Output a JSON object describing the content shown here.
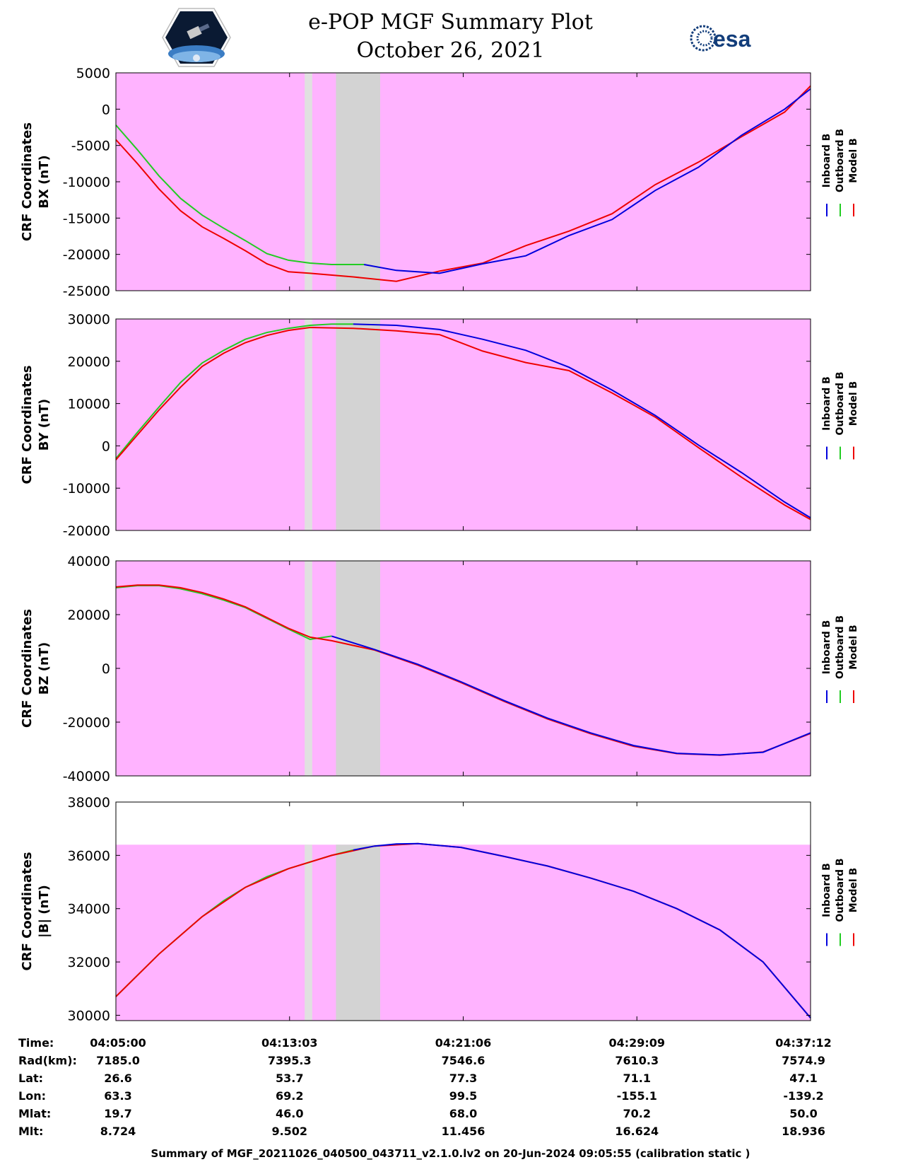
{
  "header": {
    "title_line1": "e-POP MGF Summary Plot",
    "title_line2": "October 26, 2021",
    "logo_left": "cassiope-mission-logo",
    "logo_right_text": "esa"
  },
  "colors": {
    "inboard": "#0000dd",
    "outboard": "#22cc22",
    "model": "#ee0000",
    "background_band": "#ffb3ff",
    "gap_band": "#d3d3d3",
    "light_gap": "#e0e0e0"
  },
  "legend": [
    "Inboard B",
    "Outboard B",
    "Model B"
  ],
  "chart_data": [
    {
      "type": "line",
      "ylabel_line1": "CRF Coordinates",
      "ylabel_line2": "BX (nT)",
      "ylim": [
        -25000,
        5000
      ],
      "yticks": [
        5000,
        0,
        -5000,
        -10000,
        -15000,
        -20000,
        -25000
      ],
      "x_minutes_label_note": "",
      "series": [
        {
          "name": "Inboard B",
          "x": [
            11.5,
            13,
            15,
            17,
            19,
            21,
            23,
            25,
            27,
            29,
            31,
            32.2
          ],
          "y": [
            -21400,
            -22200,
            -22600,
            -21300,
            -20200,
            -17400,
            -15200,
            -11200,
            -8000,
            -3600,
            0,
            2800
          ]
        },
        {
          "name": "Outboard B",
          "x": [
            0,
            1,
            2,
            3,
            4,
            5,
            6,
            7,
            8,
            9,
            10,
            11,
            11.5
          ],
          "y": [
            -2200,
            -5600,
            -9200,
            -12300,
            -14600,
            -16400,
            -18100,
            -19900,
            -20800,
            -21200,
            -21400,
            -21400,
            -21400
          ]
        },
        {
          "name": "Model B",
          "x": [
            0,
            1,
            2,
            3,
            4,
            5,
            6,
            7,
            8,
            9,
            11,
            13,
            15,
            17,
            19,
            21,
            23,
            25,
            27,
            29,
            31,
            32.2
          ],
          "y": [
            -4200,
            -7500,
            -11000,
            -14000,
            -16200,
            -17800,
            -19500,
            -21300,
            -22400,
            -22600,
            -23100,
            -23700,
            -22300,
            -21200,
            -18800,
            -16800,
            -14400,
            -10400,
            -7300,
            -3800,
            -400,
            3200
          ]
        }
      ]
    },
    {
      "type": "line",
      "ylabel_line1": "CRF Coordinates",
      "ylabel_line2": "BY (nT)",
      "ylim": [
        -20000,
        30000
      ],
      "yticks": [
        30000,
        20000,
        10000,
        0,
        -10000,
        -20000
      ],
      "series": [
        {
          "name": "Inboard B",
          "x": [
            11,
            13,
            15,
            17,
            19,
            21,
            23,
            25,
            27,
            29,
            31,
            32.2
          ],
          "y": [
            28800,
            28500,
            27500,
            25200,
            22600,
            18600,
            13200,
            7200,
            200,
            -6300,
            -13300,
            -17000
          ]
        },
        {
          "name": "Outboard B",
          "x": [
            0,
            1,
            2,
            3,
            4,
            5,
            6,
            7,
            8,
            9,
            10,
            11
          ],
          "y": [
            -3000,
            3200,
            9200,
            15000,
            19600,
            22600,
            25200,
            26800,
            27800,
            28500,
            28800,
            28800
          ]
        },
        {
          "name": "Model B",
          "x": [
            0,
            1,
            2,
            3,
            4,
            5,
            6,
            7,
            8,
            9,
            11,
            13,
            15,
            17,
            19,
            21,
            23,
            25,
            27,
            29,
            31,
            32.2
          ],
          "y": [
            -3300,
            2600,
            8500,
            13900,
            18800,
            21900,
            24400,
            26100,
            27300,
            28000,
            27800,
            27200,
            26300,
            22400,
            19700,
            17800,
            12500,
            6800,
            -400,
            -7400,
            -14000,
            -17400
          ]
        }
      ]
    },
    {
      "type": "line",
      "ylabel_line1": "CRF Coordinates",
      "ylabel_line2": "BZ (nT)",
      "ylim": [
        -40000,
        40000
      ],
      "yticks": [
        40000,
        20000,
        0,
        -20000,
        -40000
      ],
      "series": [
        {
          "name": "Inboard B",
          "x": [
            10,
            12,
            14,
            16,
            18,
            20,
            22,
            24,
            26,
            28,
            30,
            32.2
          ],
          "y": [
            12000,
            7000,
            1500,
            -5000,
            -12000,
            -18500,
            -24000,
            -28700,
            -31600,
            -32200,
            -31200,
            -24000
          ]
        },
        {
          "name": "Outboard B",
          "x": [
            0,
            1,
            2,
            3,
            4,
            5,
            6,
            7,
            8,
            9,
            10
          ],
          "y": [
            30000,
            30800,
            30800,
            29600,
            27800,
            25400,
            22600,
            18600,
            14600,
            10800,
            12000
          ]
        },
        {
          "name": "Model B",
          "x": [
            0,
            1,
            2,
            3,
            4,
            5,
            6,
            7,
            8,
            9,
            10,
            12,
            14,
            16,
            18,
            20,
            22,
            24,
            26,
            28,
            30,
            32.2
          ],
          "y": [
            30300,
            31000,
            31000,
            30000,
            28200,
            25800,
            22900,
            18900,
            14900,
            11600,
            10300,
            6800,
            1200,
            -5300,
            -12300,
            -18800,
            -24300,
            -29000,
            -31700,
            -32300,
            -31100,
            -24200
          ]
        }
      ]
    },
    {
      "type": "line",
      "ylabel_line1": "CRF Coordinates",
      "ylabel_line2": "|B| (nT)",
      "ylim": [
        29800,
        38000
      ],
      "yticks": [
        38000,
        36000,
        34000,
        32000,
        30000
      ],
      "series": [
        {
          "name": "Inboard B",
          "x": [
            11,
            12,
            13,
            14,
            16,
            18,
            20,
            22,
            24,
            26,
            28,
            30,
            32.2
          ],
          "y": [
            36200,
            36350,
            36430,
            36440,
            36300,
            35960,
            35600,
            35150,
            34650,
            34000,
            33200,
            32000,
            29900
          ]
        },
        {
          "name": "Outboard B",
          "x": [
            0,
            1,
            2,
            3,
            4,
            5,
            6,
            7,
            8,
            9,
            10,
            11
          ],
          "y": [
            30700,
            31500,
            32300,
            33000,
            33700,
            34300,
            34800,
            35200,
            35500,
            35750,
            36000,
            36200
          ]
        },
        {
          "name": "Model B",
          "x": [
            0,
            2,
            4,
            6,
            8,
            10,
            12,
            14,
            16,
            18,
            20,
            22,
            24,
            26,
            28,
            30,
            32.2
          ],
          "y": [
            30700,
            32300,
            33700,
            34800,
            35500,
            36000,
            36350,
            36440,
            36300,
            35960,
            35600,
            35150,
            34650,
            34000,
            33200,
            32000,
            29900
          ]
        }
      ]
    }
  ],
  "footer": {
    "row_labels": [
      "Time:",
      "Rad(km):",
      "Lat:",
      "Lon:",
      "Mlat:",
      "Mlt:"
    ],
    "columns": [
      [
        "04:05:00",
        "7185.0",
        "26.6",
        "63.3",
        "19.7",
        "8.724"
      ],
      [
        "04:13:03",
        "7395.3",
        "53.7",
        "69.2",
        "46.0",
        "9.502"
      ],
      [
        "04:21:06",
        "7546.6",
        "77.3",
        "99.5",
        "68.0",
        "11.456"
      ],
      [
        "04:29:09",
        "7610.3",
        "71.1",
        "-155.1",
        "70.2",
        "16.624"
      ],
      [
        "04:37:12",
        "7574.9",
        "47.1",
        "-139.2",
        "50.0",
        "18.936"
      ]
    ],
    "caption": "Summary of MGF_20211026_040500_043711_v2.1.0.lv2 on 20-Jun-2024 09:05:55 (calibration static )"
  }
}
